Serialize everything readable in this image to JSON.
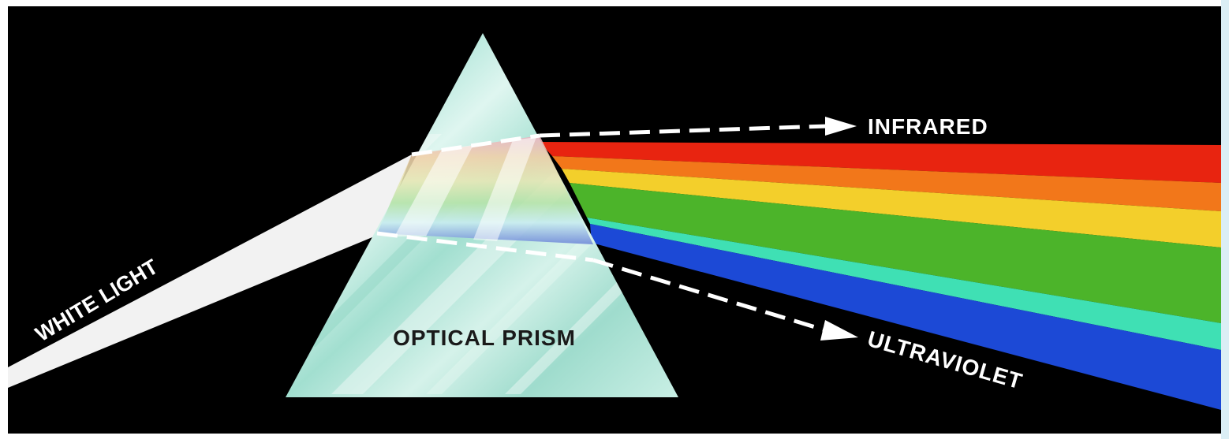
{
  "labels": {
    "white_light": "WHITE LIGHT",
    "optical_prism": "OPTICAL PRISM",
    "infrared": "INFRARED",
    "ultraviolet": "ULTRAVIOLET"
  },
  "colors": {
    "background": "#000000",
    "frame": "#ffffff",
    "frame_edge": "#dbeef5",
    "white_light": "#f2f2f2",
    "prism_fill": "#bfe9dd",
    "label_light": "#ffffff",
    "label_dark": "#1a1a1a"
  },
  "spectrum": [
    {
      "name": "red",
      "color": "#e82410"
    },
    {
      "name": "orange",
      "color": "#f2771a"
    },
    {
      "name": "yellow",
      "color": "#f3cf2b"
    },
    {
      "name": "green",
      "color": "#4cb42a"
    },
    {
      "name": "cyan",
      "color": "#3fe0b4"
    },
    {
      "name": "blue",
      "color": "#1c49d6"
    }
  ]
}
